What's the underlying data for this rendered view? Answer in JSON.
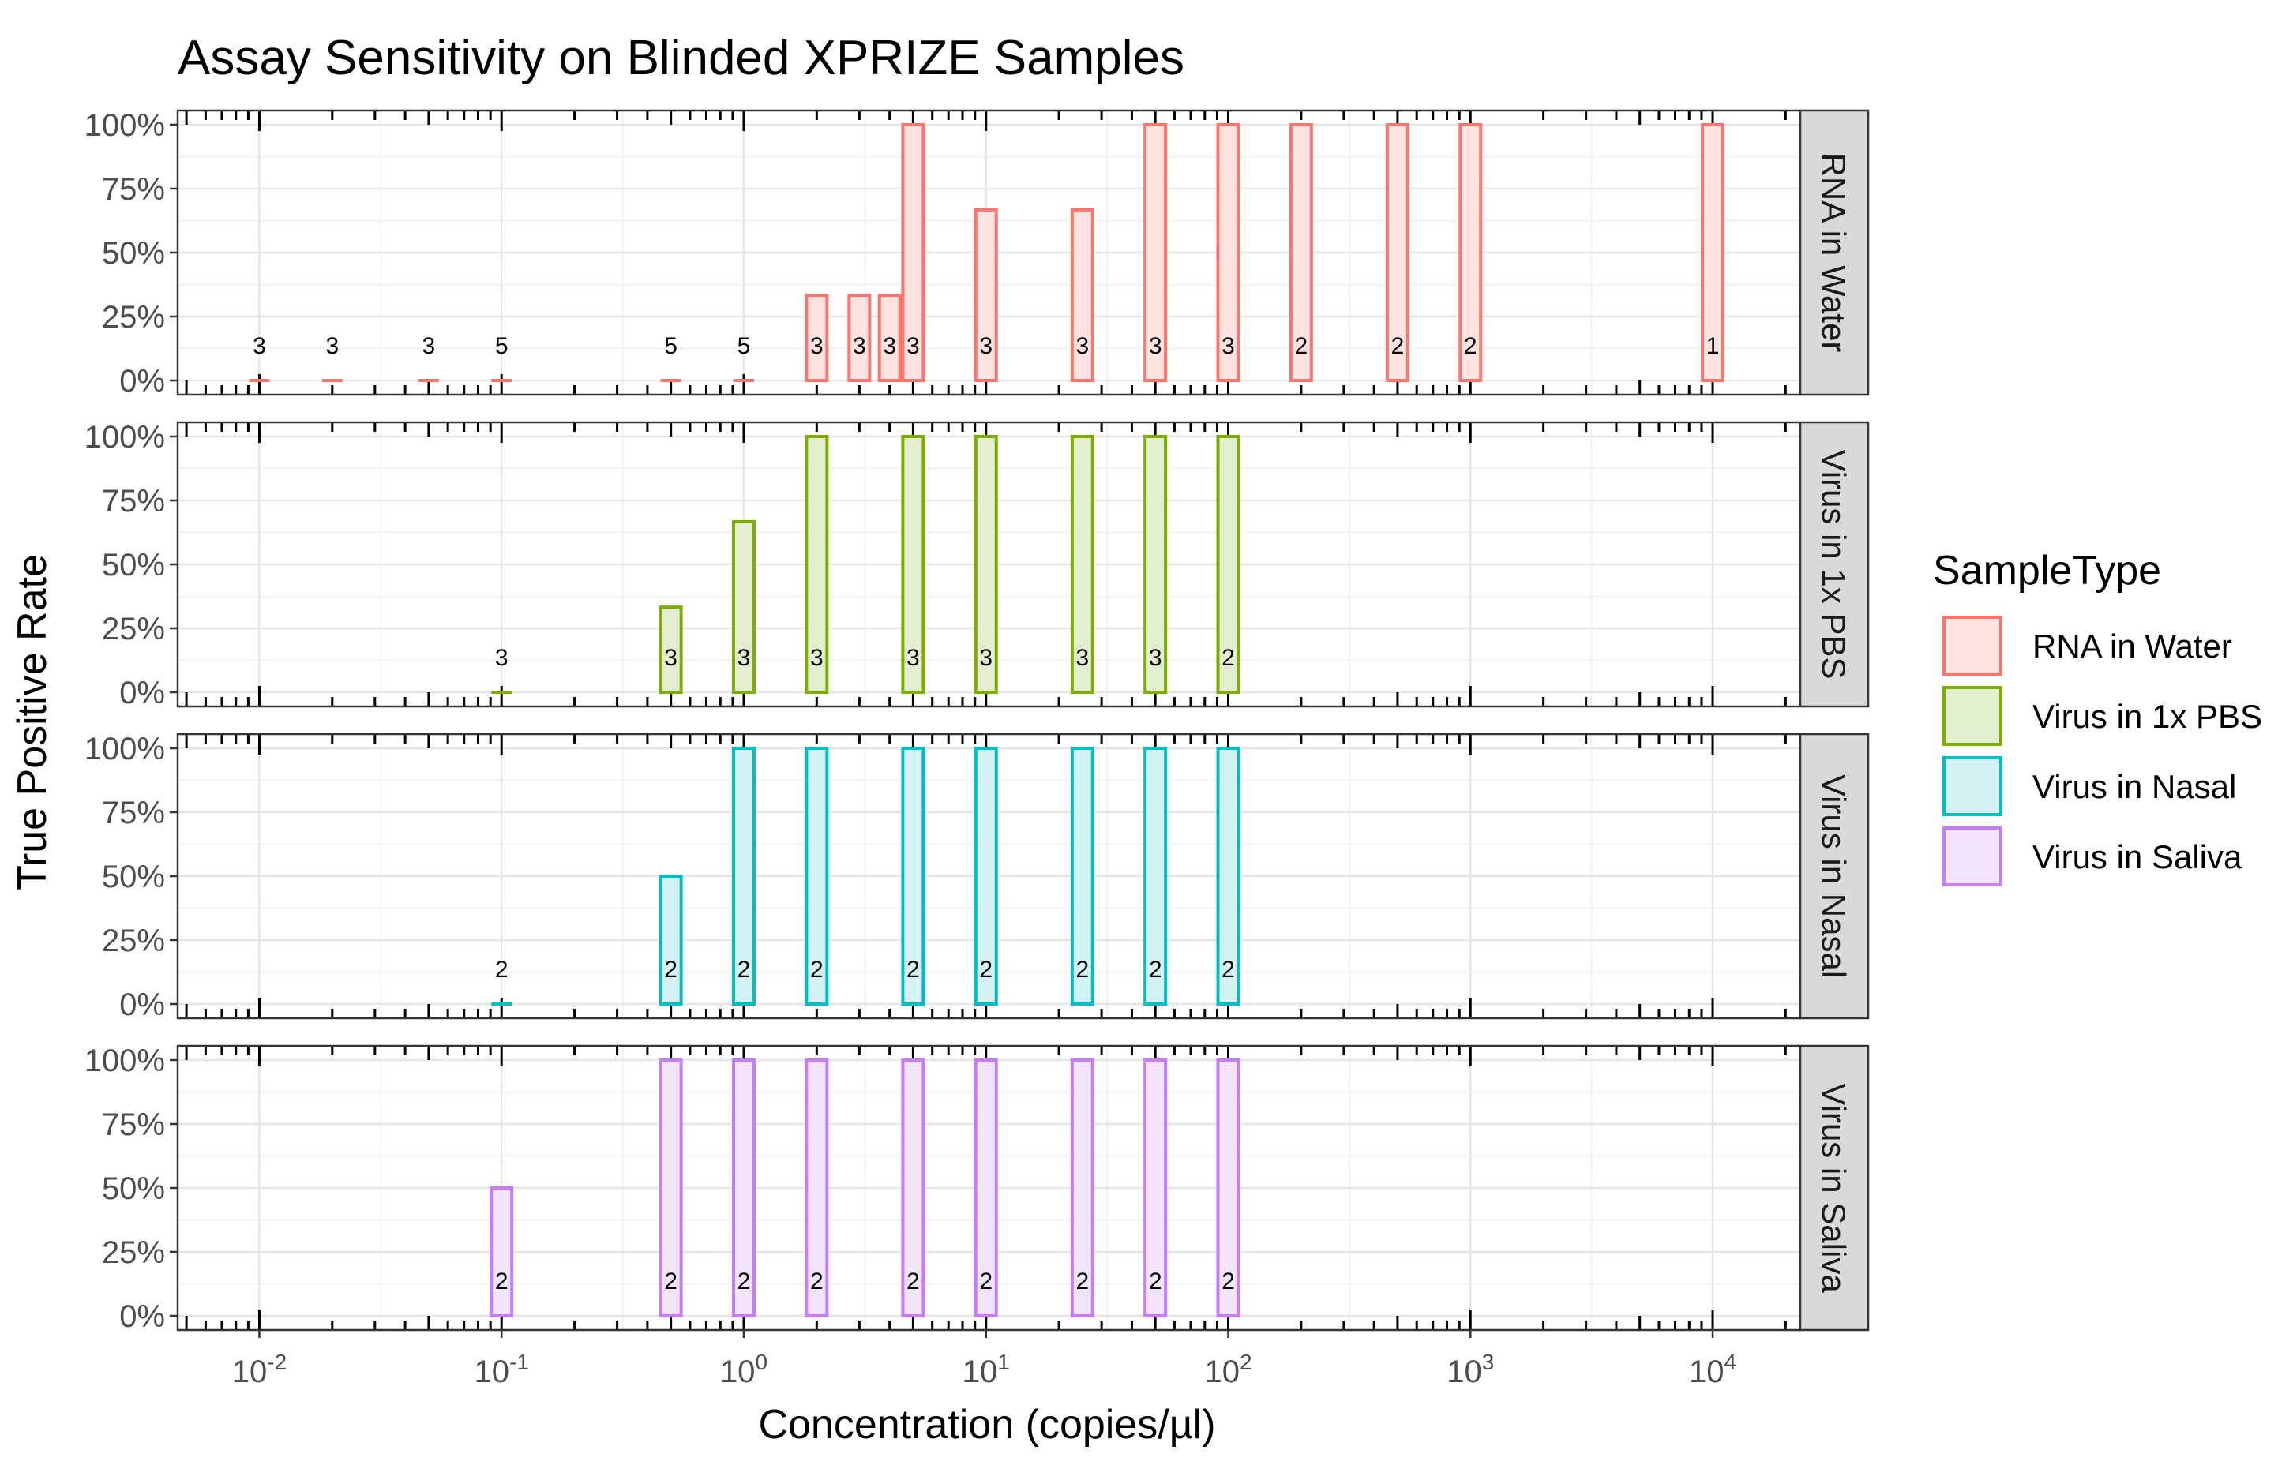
{
  "chart_data": {
    "type": "bar",
    "title": "Assay Sensitivity on Blinded XPRIZE Samples",
    "xlabel": "Concentration (copies/µl)",
    "ylabel": "True Positive Rate",
    "x_scale": "log10",
    "xlim": [
      0.0046,
      23000
    ],
    "ylim": [
      0,
      1
    ],
    "x_ticks": [
      {
        "base": "10",
        "exp": "-2",
        "value": 0.01
      },
      {
        "base": "10",
        "exp": "-1",
        "value": 0.1
      },
      {
        "base": "10",
        "exp": "0",
        "value": 1
      },
      {
        "base": "10",
        "exp": "1",
        "value": 10
      },
      {
        "base": "10",
        "exp": "2",
        "value": 100
      },
      {
        "base": "10",
        "exp": "3",
        "value": 1000
      },
      {
        "base": "10",
        "exp": "4",
        "value": 10000
      }
    ],
    "y_ticks": [
      {
        "label": "0%",
        "value": 0
      },
      {
        "label": "25%",
        "value": 0.25
      },
      {
        "label": "50%",
        "value": 0.5
      },
      {
        "label": "75%",
        "value": 0.75
      },
      {
        "label": "100%",
        "value": 1
      }
    ],
    "grid": true,
    "legend": {
      "title": "SampleType",
      "placement": "right",
      "entries": [
        {
          "label": "RNA in Water",
          "color": "#F8766D",
          "fill": "#FDE2E0"
        },
        {
          "label": "Virus in 1x PBS",
          "color": "#7CAE00",
          "fill": "#E3EED1"
        },
        {
          "label": "Virus in Nasal",
          "color": "#00BFC4",
          "fill": "#D4F2F3"
        },
        {
          "label": "Virus in Saliva",
          "color": "#C77CFF",
          "fill": "#F1E4FB"
        }
      ]
    },
    "series": [
      {
        "name": "RNA in Water",
        "points": [
          {
            "x": 0.01,
            "tpr": 0,
            "n": "3"
          },
          {
            "x": 0.02,
            "tpr": 0,
            "n": "3"
          },
          {
            "x": 0.05,
            "tpr": 0,
            "n": "3"
          },
          {
            "x": 0.1,
            "tpr": 0,
            "n": "5"
          },
          {
            "x": 0.5,
            "tpr": 0,
            "n": "5"
          },
          {
            "x": 1,
            "tpr": 0,
            "n": "5"
          },
          {
            "x": 2,
            "tpr": 0.333,
            "n": "3"
          },
          {
            "x": 3,
            "tpr": 0.333,
            "n": "3"
          },
          {
            "x": 4,
            "tpr": 0.333,
            "n": "3"
          },
          {
            "x": 5,
            "tpr": 1,
            "n": "3"
          },
          {
            "x": 10,
            "tpr": 0.667,
            "n": "3"
          },
          {
            "x": 25,
            "tpr": 0.667,
            "n": "3"
          },
          {
            "x": 50,
            "tpr": 1,
            "n": "3"
          },
          {
            "x": 100,
            "tpr": 1,
            "n": "3"
          },
          {
            "x": 200,
            "tpr": 1,
            "n": "2"
          },
          {
            "x": 500,
            "tpr": 1,
            "n": "2"
          },
          {
            "x": 1000,
            "tpr": 1,
            "n": "2"
          },
          {
            "x": 10000,
            "tpr": 1,
            "n": "1"
          }
        ]
      },
      {
        "name": "Virus in 1x PBS",
        "points": [
          {
            "x": 0.1,
            "tpr": 0,
            "n": "3"
          },
          {
            "x": 0.5,
            "tpr": 0.333,
            "n": "3"
          },
          {
            "x": 1,
            "tpr": 0.667,
            "n": "3"
          },
          {
            "x": 2,
            "tpr": 1,
            "n": "3"
          },
          {
            "x": 5,
            "tpr": 1,
            "n": "3"
          },
          {
            "x": 10,
            "tpr": 1,
            "n": "3"
          },
          {
            "x": 25,
            "tpr": 1,
            "n": "3"
          },
          {
            "x": 50,
            "tpr": 1,
            "n": "3"
          },
          {
            "x": 100,
            "tpr": 1,
            "n": "2"
          }
        ]
      },
      {
        "name": "Virus in Nasal",
        "points": [
          {
            "x": 0.1,
            "tpr": 0,
            "n": "2"
          },
          {
            "x": 0.5,
            "tpr": 0.5,
            "n": "2"
          },
          {
            "x": 1,
            "tpr": 1,
            "n": "2"
          },
          {
            "x": 2,
            "tpr": 1,
            "n": "2"
          },
          {
            "x": 5,
            "tpr": 1,
            "n": "2"
          },
          {
            "x": 10,
            "tpr": 1,
            "n": "2"
          },
          {
            "x": 25,
            "tpr": 1,
            "n": "2"
          },
          {
            "x": 50,
            "tpr": 1,
            "n": "2"
          },
          {
            "x": 100,
            "tpr": 1,
            "n": "2"
          }
        ]
      },
      {
        "name": "Virus in Saliva",
        "points": [
          {
            "x": 0.1,
            "tpr": 0.5,
            "n": "2"
          },
          {
            "x": 0.5,
            "tpr": 1,
            "n": "2"
          },
          {
            "x": 1,
            "tpr": 1,
            "n": "2"
          },
          {
            "x": 2,
            "tpr": 1,
            "n": "2"
          },
          {
            "x": 5,
            "tpr": 1,
            "n": "2"
          },
          {
            "x": 10,
            "tpr": 1,
            "n": "2"
          },
          {
            "x": 25,
            "tpr": 1,
            "n": "2"
          },
          {
            "x": 50,
            "tpr": 1,
            "n": "2"
          },
          {
            "x": 100,
            "tpr": 1,
            "n": "2"
          }
        ]
      }
    ]
  }
}
